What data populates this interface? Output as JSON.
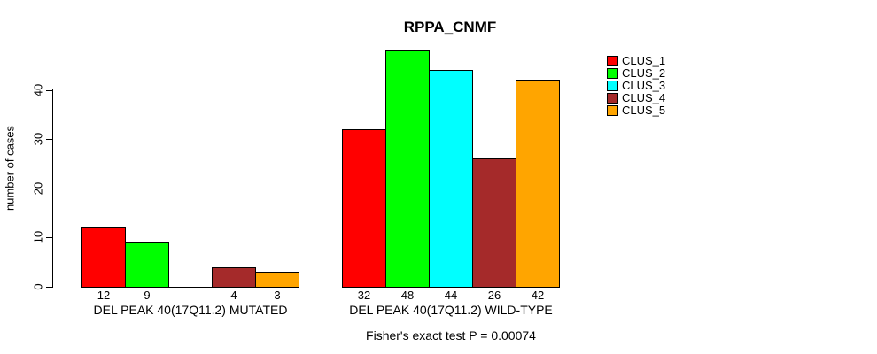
{
  "chart_data": {
    "type": "bar",
    "title": "RPPA_CNMF",
    "ylabel": "number of cases",
    "ylim": [
      0,
      48
    ],
    "yticks": [
      0,
      10,
      20,
      30,
      40
    ],
    "grid": false,
    "legend_position": "right",
    "bar_value_labels": true,
    "categories": [
      "DEL PEAK 40(17Q11.2) MUTATED",
      "DEL PEAK 40(17Q11.2) WILD-TYPE"
    ],
    "series": [
      {
        "name": "CLUS_1",
        "color": "#FF0000",
        "values": [
          12,
          32
        ]
      },
      {
        "name": "CLUS_2",
        "color": "#00FF00",
        "values": [
          9,
          48
        ]
      },
      {
        "name": "CLUS_3",
        "color": "#00FFFF",
        "values": [
          null,
          44
        ]
      },
      {
        "name": "CLUS_4",
        "color": "#A52A2A",
        "values": [
          4,
          26
        ]
      },
      {
        "name": "CLUS_5",
        "color": "#FFA500",
        "values": [
          3,
          42
        ]
      }
    ],
    "note": "Fisher's exact test P = 0.00074"
  }
}
